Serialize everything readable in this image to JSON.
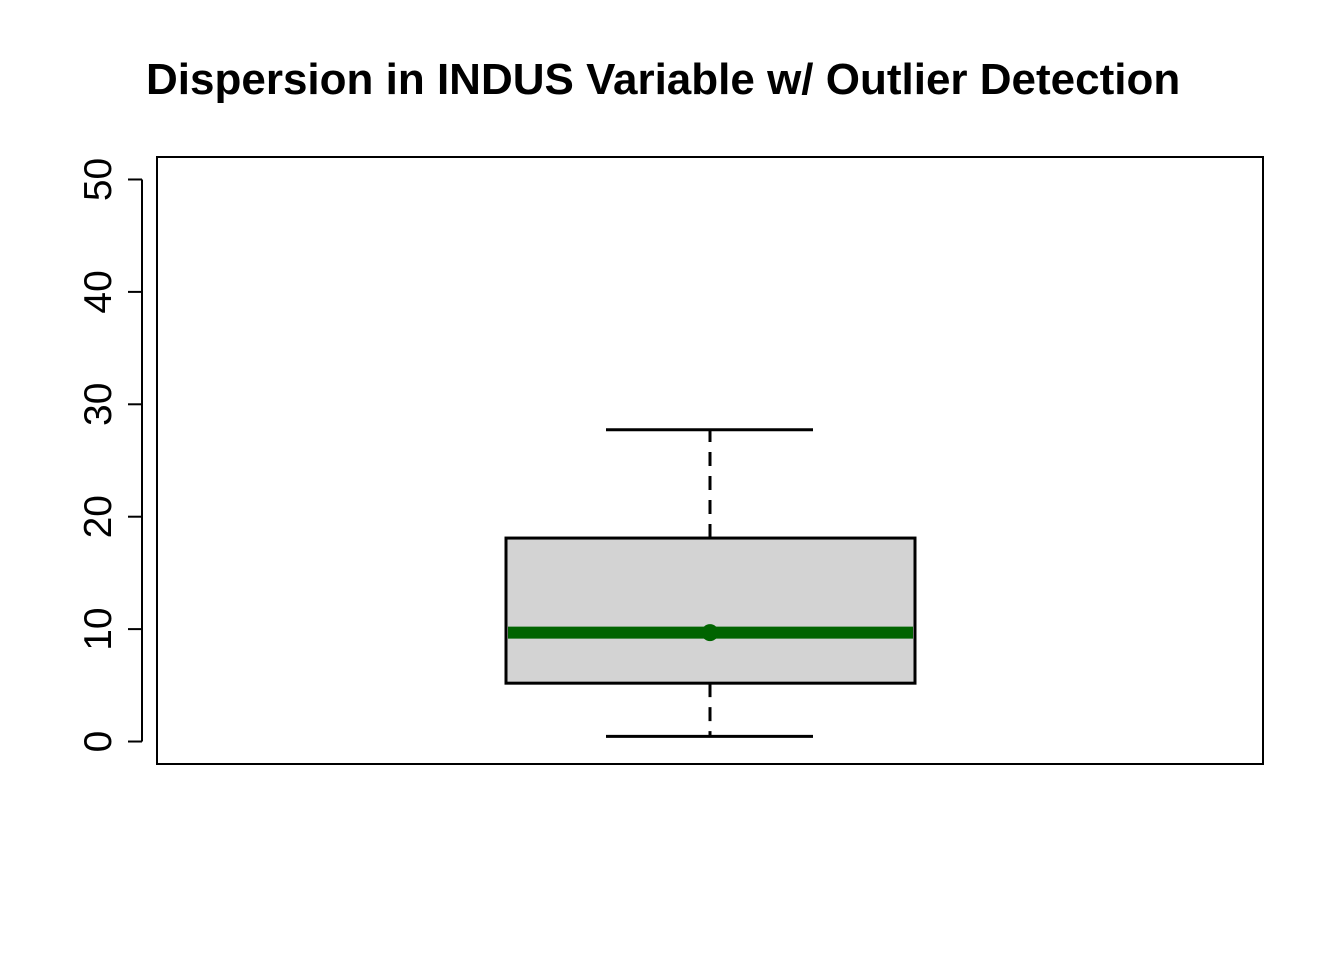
{
  "chart_data": {
    "type": "box",
    "title": "Dispersion in INDUS Variable w/ Outlier Detection",
    "xlabel": "",
    "ylabel": "",
    "ylim": [
      -2,
      52
    ],
    "yticks": [
      0,
      10,
      20,
      30,
      40,
      50
    ],
    "series": [
      {
        "whisker_low": 0.46,
        "q1": 5.19,
        "median": 9.69,
        "mean": 9.69,
        "q3": 18.1,
        "whisker_high": 27.74,
        "outliers": []
      }
    ],
    "colors": {
      "box_fill": "#d3d3d3",
      "box_stroke": "#000000",
      "median": "#006400",
      "mean_point": "#006400"
    },
    "grid": false
  }
}
